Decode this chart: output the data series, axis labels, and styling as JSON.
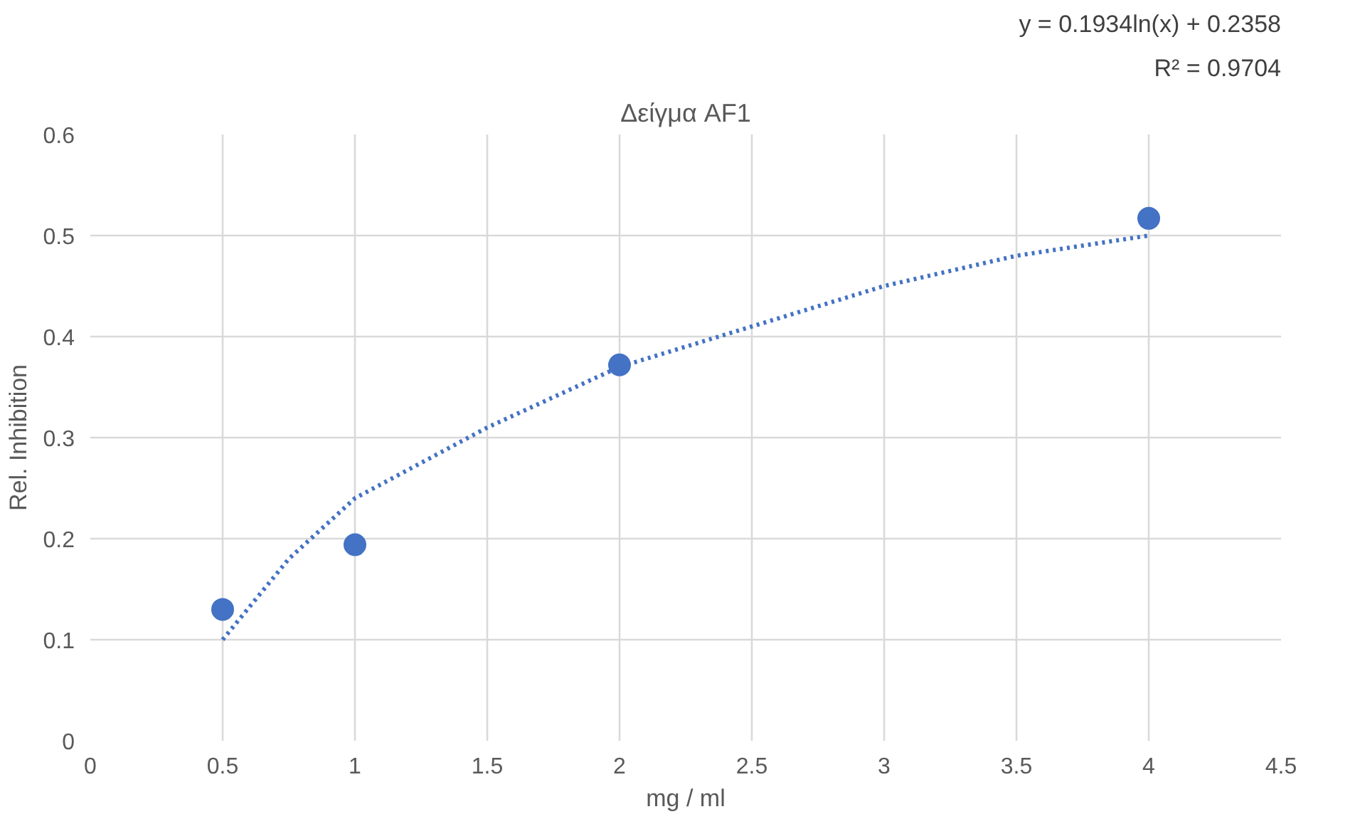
{
  "chart_data": {
    "type": "scatter",
    "title": "Δείγμα AF1",
    "xlabel": "mg / ml",
    "ylabel": "Rel. Inhibition",
    "annotations": [
      "y = 0.1934ln(x) + 0.2358",
      "R² = 0.9704"
    ],
    "x": [
      0.5,
      1,
      2,
      4
    ],
    "series": [
      {
        "color": "#4472c4",
        "values": [
          0.13,
          0.194,
          0.372,
          0.517
        ],
        "marker": "circle"
      },
      {
        "type": "line",
        "color": "#4472c4",
        "line_style": "dotted",
        "marker": "none",
        "x": [
          0.5,
          0.75,
          1,
          1.5,
          2,
          2.5,
          3,
          3.5,
          4
        ],
        "values": [
          0.1,
          0.18,
          0.24,
          0.31,
          0.37,
          0.41,
          0.45,
          0.48,
          0.5
        ]
      }
    ],
    "xlim": [
      0,
      4.5
    ],
    "ylim": [
      0,
      0.6
    ],
    "xticks": [
      0,
      0.5,
      1,
      1.5,
      2,
      2.5,
      3,
      3.5,
      4,
      4.5
    ],
    "yticks": [
      0,
      0.1,
      0.2,
      0.3,
      0.4,
      0.5,
      0.6
    ],
    "grid": true
  }
}
